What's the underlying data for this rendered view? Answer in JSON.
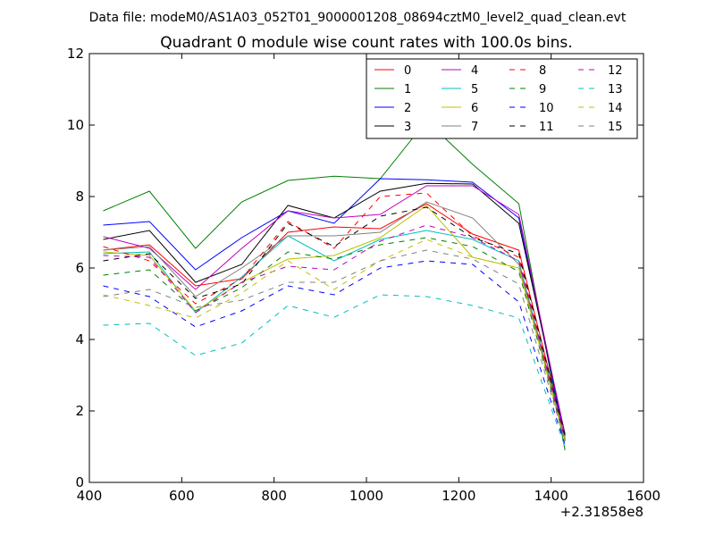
{
  "figure": {
    "suptitle": "Data file: modeM0/AS1A03_052T01_9000001208_08694cztM0_level2_quad_clean.evt"
  },
  "chart_data": {
    "type": "line",
    "title": "Quadrant 0 module wise count rates with 100.0s bins.",
    "xlabel": "",
    "ylabel": "",
    "x_offset_label": "+2.31858e8",
    "xlim": [
      400,
      1600
    ],
    "ylim": [
      0,
      12
    ],
    "xticks": [
      "400",
      "600",
      "800",
      "1000",
      "1200",
      "1400",
      "1600"
    ],
    "yticks": [
      "0",
      "2",
      "4",
      "6",
      "8",
      "10",
      "12"
    ],
    "grid": false,
    "legend_position": "top-right",
    "legend_columns": 4,
    "x": [
      430,
      530,
      630,
      730,
      830,
      930,
      1030,
      1130,
      1230,
      1330,
      1430
    ],
    "series": [
      {
        "name": "0",
        "color": "#ff0000",
        "dash": "solid",
        "values": [
          6.5,
          6.65,
          5.5,
          5.7,
          7.0,
          7.15,
          7.1,
          7.8,
          6.95,
          6.5,
          1.3
        ]
      },
      {
        "name": "1",
        "color": "#008000",
        "dash": "solid",
        "values": [
          7.6,
          8.15,
          6.55,
          7.85,
          8.45,
          8.57,
          8.5,
          10.12,
          8.9,
          7.8,
          0.9
        ]
      },
      {
        "name": "2",
        "color": "#0000ff",
        "dash": "solid",
        "values": [
          7.2,
          7.3,
          5.95,
          6.85,
          7.6,
          7.25,
          8.5,
          8.47,
          8.4,
          7.4,
          1.2
        ]
      },
      {
        "name": "3",
        "color": "#000000",
        "dash": "solid",
        "values": [
          6.8,
          7.05,
          5.6,
          6.1,
          7.75,
          7.4,
          8.15,
          8.37,
          8.35,
          7.25,
          1.35
        ]
      },
      {
        "name": "4",
        "color": "#bf00bf",
        "dash": "solid",
        "values": [
          6.88,
          6.55,
          5.4,
          6.55,
          7.6,
          7.4,
          7.5,
          8.3,
          8.3,
          7.5,
          1.3
        ]
      },
      {
        "name": "5",
        "color": "#00bfbf",
        "dash": "solid",
        "values": [
          6.4,
          6.45,
          4.75,
          5.75,
          6.9,
          6.2,
          6.8,
          7.05,
          6.8,
          6.2,
          1.25
        ]
      },
      {
        "name": "6",
        "color": "#bfbf00",
        "dash": "solid",
        "values": [
          6.45,
          6.35,
          4.8,
          5.6,
          6.25,
          6.35,
          6.85,
          7.75,
          6.3,
          6.0,
          1.2
        ]
      },
      {
        "name": "7",
        "color": "#808080",
        "dash": "solid",
        "values": [
          6.5,
          6.6,
          5.2,
          6.0,
          6.9,
          6.9,
          7.0,
          7.85,
          7.4,
          6.1,
          1.25
        ]
      },
      {
        "name": "8",
        "color": "#ff0000",
        "dash": "dashed",
        "values": [
          6.6,
          6.2,
          5.0,
          5.7,
          7.3,
          6.55,
          8.0,
          8.1,
          6.9,
          6.3,
          1.25
        ]
      },
      {
        "name": "9",
        "color": "#008000",
        "dash": "dashed",
        "values": [
          5.8,
          5.95,
          4.8,
          5.45,
          6.45,
          6.25,
          6.65,
          6.85,
          6.6,
          5.9,
          1.15
        ]
      },
      {
        "name": "10",
        "color": "#0000ff",
        "dash": "dashed",
        "values": [
          5.5,
          5.2,
          4.35,
          4.8,
          5.5,
          5.25,
          6.0,
          6.2,
          6.1,
          5.05,
          1.05
        ]
      },
      {
        "name": "11",
        "color": "#000000",
        "dash": "dashed",
        "values": [
          6.2,
          6.4,
          5.15,
          5.55,
          7.25,
          6.6,
          7.45,
          7.7,
          6.85,
          6.4,
          1.3
        ]
      },
      {
        "name": "12",
        "color": "#bf00bf",
        "dash": "dashed",
        "values": [
          6.35,
          6.3,
          4.75,
          5.6,
          6.05,
          5.95,
          6.75,
          7.2,
          6.85,
          6.2,
          1.2
        ]
      },
      {
        "name": "13",
        "color": "#00bfbf",
        "dash": "dashed",
        "values": [
          4.4,
          4.45,
          3.55,
          3.9,
          4.95,
          4.62,
          5.25,
          5.2,
          4.95,
          4.6,
          1.0
        ]
      },
      {
        "name": "14",
        "color": "#bfbf00",
        "dash": "dashed",
        "values": [
          5.25,
          4.95,
          4.6,
          5.3,
          6.2,
          5.4,
          6.2,
          6.8,
          6.3,
          6.0,
          1.15
        ]
      },
      {
        "name": "15",
        "color": "#808080",
        "dash": "dashed",
        "values": [
          5.2,
          5.4,
          4.9,
          5.1,
          5.6,
          5.6,
          6.2,
          6.5,
          6.25,
          5.55,
          1.15
        ]
      }
    ]
  }
}
